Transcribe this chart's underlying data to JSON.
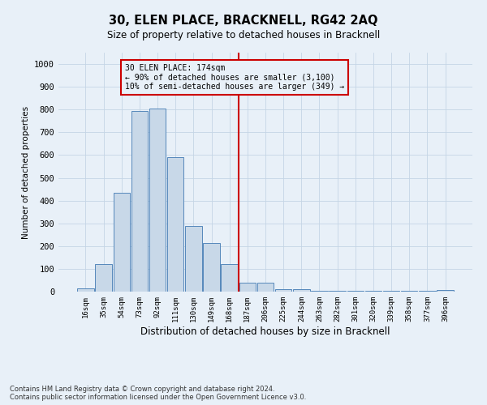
{
  "title": "30, ELEN PLACE, BRACKNELL, RG42 2AQ",
  "subtitle": "Size of property relative to detached houses in Bracknell",
  "xlabel": "Distribution of detached houses by size in Bracknell",
  "ylabel": "Number of detached properties",
  "bar_labels": [
    "16sqm",
    "35sqm",
    "54sqm",
    "73sqm",
    "92sqm",
    "111sqm",
    "130sqm",
    "149sqm",
    "168sqm",
    "187sqm",
    "206sqm",
    "225sqm",
    "244sqm",
    "263sqm",
    "282sqm",
    "301sqm",
    "320sqm",
    "339sqm",
    "358sqm",
    "377sqm",
    "396sqm"
  ],
  "bar_values": [
    15,
    120,
    435,
    795,
    805,
    590,
    290,
    213,
    120,
    40,
    38,
    10,
    10,
    5,
    5,
    2,
    2,
    2,
    2,
    2,
    8
  ],
  "bar_color": "#c8d8e8",
  "bar_edge_color": "#5588bb",
  "vline_x": 8.5,
  "vline_color": "#cc0000",
  "annotation_line1": "30 ELEN PLACE: 174sqm",
  "annotation_line2": "← 90% of detached houses are smaller (3,100)",
  "annotation_line3": "10% of semi-detached houses are larger (349) →",
  "annotation_box_color": "#cc0000",
  "ylim": [
    0,
    1050
  ],
  "yticks": [
    0,
    100,
    200,
    300,
    400,
    500,
    600,
    700,
    800,
    900,
    1000
  ],
  "grid_color": "#c5d5e5",
  "bg_color": "#e8f0f8",
  "footer_line1": "Contains HM Land Registry data © Crown copyright and database right 2024.",
  "footer_line2": "Contains public sector information licensed under the Open Government Licence v3.0."
}
